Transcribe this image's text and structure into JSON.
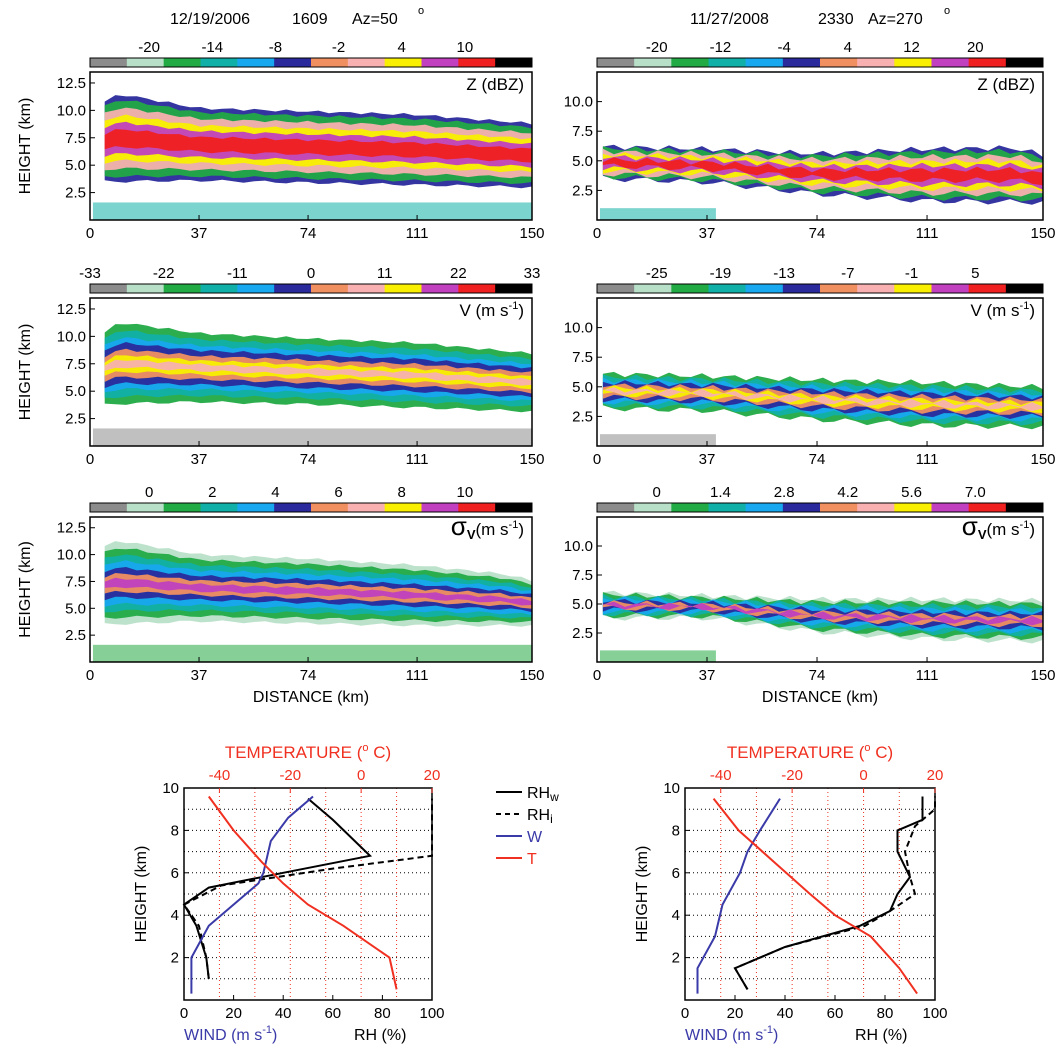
{
  "colors": {
    "radar_palette": [
      "#8c8c8c",
      "#b8e0c8",
      "#22aa44",
      "#10b0a8",
      "#18a8f0",
      "#2a2a9c",
      "#f09060",
      "#f8b0b0",
      "#f8f000",
      "#c040c0",
      "#f02020",
      "#000000"
    ],
    "rhw": "#000000",
    "rhi": "#000000",
    "wind": "#3a3aa8",
    "temperature": "#f03020",
    "red_axis": "#f03020",
    "blue_axis": "#3a3aa8"
  },
  "columns": [
    {
      "header": {
        "date": "12/19/2006",
        "time": "1609",
        "azimuth": "Az=50",
        "deg": "o"
      }
    },
    {
      "header": {
        "date": "11/27/2008",
        "time": "2330",
        "azimuth": "Az=270",
        "deg": "o"
      }
    }
  ],
  "chart_data": [
    {
      "type": "heatmap",
      "id": "Z-2006",
      "field_label": "Z (dBZ)",
      "colorbar_ticks": [
        "-20",
        "-14",
        "-8",
        "-2",
        "4",
        "10"
      ],
      "ylabel": "HEIGHT  (km)",
      "y_ticks": [
        "2.5",
        "5.0",
        "7.5",
        "10.0",
        "12.5"
      ],
      "ylim": [
        0,
        13.5
      ],
      "x_ticks": [
        "0",
        "37",
        "74",
        "111",
        "150"
      ],
      "xlim": [
        0,
        150
      ],
      "xlabel": "",
      "echo_top_km": [
        [
          5,
          10.8
        ],
        [
          10,
          11.5
        ],
        [
          37,
          10.2
        ],
        [
          74,
          9.9
        ],
        [
          111,
          9.6
        ],
        [
          140,
          9.0
        ],
        [
          150,
          8.8
        ]
      ],
      "echo_base_km": [
        [
          5,
          3.5
        ],
        [
          37,
          3.6
        ],
        [
          74,
          3.4
        ],
        [
          111,
          3.2
        ],
        [
          150,
          3.0
        ]
      ]
    },
    {
      "type": "heatmap",
      "id": "Z-2008",
      "field_label": "Z (dBZ)",
      "colorbar_ticks": [
        "-20",
        "-12",
        "-4",
        "4",
        "12",
        "20"
      ],
      "ylabel": "",
      "y_ticks": [
        "2.5",
        "5.0",
        "7.5",
        "10.0"
      ],
      "ylim": [
        0,
        12.5
      ],
      "x_ticks": [
        "0",
        "37",
        "74",
        "111",
        "150"
      ],
      "xlim": [
        0,
        150
      ],
      "xlabel": "",
      "echo_top_km": [
        [
          2,
          6.2
        ],
        [
          37,
          6.0
        ],
        [
          74,
          5.6
        ],
        [
          111,
          6.0
        ],
        [
          140,
          6.1
        ],
        [
          150,
          5.5
        ]
      ],
      "echo_base_km": [
        [
          2,
          3.5
        ],
        [
          37,
          3.2
        ],
        [
          74,
          2.2
        ],
        [
          111,
          1.6
        ],
        [
          150,
          1.5
        ]
      ]
    },
    {
      "type": "heatmap",
      "id": "V-2006",
      "field_label": "V  (m s",
      "field_label_sup": "-1",
      "colorbar_ticks": [
        "-33",
        "-22",
        "-11",
        "0",
        "11",
        "22",
        "33"
      ],
      "ylabel": "HEIGHT  (km)",
      "y_ticks": [
        "2.5",
        "5.0",
        "7.5",
        "10.0",
        "12.5"
      ],
      "ylim": [
        0,
        13.5
      ],
      "x_ticks": [
        "0",
        "37",
        "74",
        "111",
        "150"
      ],
      "xlim": [
        0,
        150
      ],
      "xlabel": "",
      "echo_top_km": [
        [
          5,
          10.8
        ],
        [
          10,
          11.8
        ],
        [
          37,
          10.7
        ],
        [
          74,
          10.2
        ],
        [
          111,
          9.8
        ],
        [
          150,
          8.8
        ]
      ],
      "echo_base_km": [
        [
          5,
          3.3
        ],
        [
          37,
          3.6
        ],
        [
          74,
          3.4
        ],
        [
          111,
          3.1
        ],
        [
          150,
          2.8
        ]
      ]
    },
    {
      "type": "heatmap",
      "id": "V-2008",
      "field_label": "V  (m s",
      "field_label_sup": "-1",
      "colorbar_ticks": [
        "-25",
        "-19",
        "-13",
        "-7",
        "-1",
        "5"
      ],
      "ylabel": "",
      "y_ticks": [
        "2.5",
        "5.0",
        "7.5",
        "10.0"
      ],
      "ylim": [
        0,
        12.5
      ],
      "x_ticks": [
        "0",
        "37",
        "74",
        "111",
        "150"
      ],
      "xlim": [
        0,
        150
      ],
      "xlabel": "",
      "echo_top_km": [
        [
          2,
          6.3
        ],
        [
          37,
          6.1
        ],
        [
          74,
          5.8
        ],
        [
          111,
          5.6
        ],
        [
          150,
          5.2
        ]
      ],
      "echo_base_km": [
        [
          2,
          3.0
        ],
        [
          37,
          2.8
        ],
        [
          74,
          2.0
        ],
        [
          111,
          1.5
        ],
        [
          150,
          1.4
        ]
      ]
    },
    {
      "type": "heatmap",
      "id": "SW-2006",
      "field_label": "σ",
      "field_label_sub": "V",
      "field_label_unit": "(m s",
      "field_label_sup": "-1",
      "colorbar_ticks": [
        "0",
        "2",
        "4",
        "6",
        "8",
        "10"
      ],
      "ylabel": "HEIGHT  (km)",
      "y_ticks": [
        "2.5",
        "5.0",
        "7.5",
        "10.0",
        "12.5"
      ],
      "ylim": [
        0,
        13.5
      ],
      "x_ticks": [
        "0",
        "37",
        "74",
        "111",
        "150"
      ],
      "xlim": [
        0,
        150
      ],
      "xlabel": "DISTANCE  (km)",
      "echo_top_km": [
        [
          5,
          10.8
        ],
        [
          10,
          11.3
        ],
        [
          37,
          10.0
        ],
        [
          74,
          9.6
        ],
        [
          111,
          9.0
        ],
        [
          140,
          8.2
        ],
        [
          150,
          7.6
        ]
      ],
      "echo_base_km": [
        [
          5,
          3.5
        ],
        [
          37,
          3.8
        ],
        [
          74,
          3.6
        ],
        [
          111,
          3.4
        ],
        [
          150,
          3.4
        ]
      ]
    },
    {
      "type": "heatmap",
      "id": "SW-2008",
      "field_label": "σ",
      "field_label_sub": "V",
      "field_label_unit": "(m s",
      "field_label_sup": "-1",
      "colorbar_ticks": [
        "0",
        "1.4",
        "2.8",
        "4.2",
        "5.6",
        "7.0"
      ],
      "ylabel": "",
      "y_ticks": [
        "2.5",
        "5.0",
        "7.5",
        "10.0"
      ],
      "ylim": [
        0,
        12.5
      ],
      "x_ticks": [
        "0",
        "37",
        "74",
        "111",
        "150"
      ],
      "xlim": [
        0,
        150
      ],
      "xlabel": "DISTANCE  (km)",
      "echo_top_km": [
        [
          2,
          6.0
        ],
        [
          37,
          5.7
        ],
        [
          74,
          5.4
        ],
        [
          111,
          5.4
        ],
        [
          150,
          5.3
        ]
      ],
      "echo_base_km": [
        [
          2,
          3.8
        ],
        [
          37,
          3.8
        ],
        [
          74,
          2.6
        ],
        [
          111,
          2.0
        ],
        [
          150,
          1.8
        ]
      ]
    },
    {
      "type": "line",
      "id": "sounding-2006",
      "top_axis_label": "TEMPERATURE  (",
      "top_axis_deg": "o",
      "top_axis_unit": " C)",
      "temperature_ticks": [
        "-40",
        "-20",
        "0",
        "20"
      ],
      "temperature_range": [
        -50,
        20
      ],
      "bottom_ticks": [
        "0",
        "20",
        "40",
        "60",
        "80",
        "100"
      ],
      "rh_wind_range": [
        0,
        100
      ],
      "wind_label": "WIND (m s",
      "wind_label_sup": "-1",
      "wind_label_end": ")",
      "rh_label": "RH (%)",
      "ylabel": "HEIGHT  (km)",
      "y_ticks": [
        "2",
        "4",
        "6",
        "8",
        "10"
      ],
      "ylim": [
        0,
        10
      ],
      "series": [
        {
          "name": "RHw",
          "key": "rhw",
          "points": [
            [
              10,
              1.0
            ],
            [
              9,
              2.0
            ],
            [
              5,
              3.5
            ],
            [
              0,
              4.5
            ],
            [
              10,
              5.3
            ],
            [
              40,
              6.0
            ],
            [
              75,
              6.8
            ],
            [
              60,
              8.5
            ],
            [
              50,
              9.5
            ]
          ]
        },
        {
          "name": "RHi",
          "key": "rhi",
          "points": [
            [
              10,
              1.0
            ],
            [
              9,
              2.0
            ],
            [
              6,
              3.5
            ],
            [
              0,
              4.5
            ],
            [
              15,
              5.4
            ],
            [
              60,
              6.2
            ],
            [
              100,
              6.8
            ],
            [
              100,
              9.5
            ]
          ]
        },
        {
          "name": "W",
          "key": "wind",
          "points": [
            [
              3,
              0.3
            ],
            [
              3,
              2.0
            ],
            [
              10,
              3.5
            ],
            [
              30,
              5.5
            ],
            [
              32,
              6.0
            ],
            [
              35,
              7.5
            ],
            [
              42,
              8.6
            ],
            [
              52,
              9.6
            ]
          ]
        },
        {
          "name": "T",
          "key": "temperature",
          "points": [
            [
              10,
              0.5
            ],
            [
              8,
              2.0
            ],
            [
              -5,
              3.5
            ],
            [
              -15,
              4.5
            ],
            [
              -22,
              5.5
            ],
            [
              -28,
              6.5
            ],
            [
              -36,
              8.0
            ],
            [
              -43,
              9.6
            ]
          ]
        }
      ]
    },
    {
      "type": "line",
      "id": "sounding-2008",
      "top_axis_label": "TEMPERATURE  (",
      "top_axis_deg": "o",
      "top_axis_unit": " C)",
      "temperature_ticks": [
        "-40",
        "-20",
        "0",
        "20"
      ],
      "temperature_range": [
        -50,
        20
      ],
      "bottom_ticks": [
        "0",
        "20",
        "40",
        "60",
        "80",
        "100"
      ],
      "rh_wind_range": [
        0,
        100
      ],
      "wind_label": "WIND (m s",
      "wind_label_sup": "-1",
      "wind_label_end": ")",
      "rh_label": "RH (%)",
      "ylabel": "HEIGHT  (km)",
      "y_ticks": [
        "2",
        "4",
        "6",
        "8",
        "10"
      ],
      "ylim": [
        0,
        10
      ],
      "series": [
        {
          "name": "RHw",
          "key": "rhw",
          "points": [
            [
              25,
              0.5
            ],
            [
              20,
              1.5
            ],
            [
              40,
              2.5
            ],
            [
              70,
              3.5
            ],
            [
              82,
              4.2
            ],
            [
              85,
              5.0
            ],
            [
              90,
              5.8
            ],
            [
              85,
              7.0
            ],
            [
              85,
              8.0
            ],
            [
              95,
              8.5
            ],
            [
              95,
              9.6
            ]
          ]
        },
        {
          "name": "RHi",
          "key": "rhi",
          "points": [
            [
              25,
              0.5
            ],
            [
              20,
              1.5
            ],
            [
              40,
              2.5
            ],
            [
              72,
              3.5
            ],
            [
              82,
              4.2
            ],
            [
              92,
              5.0
            ],
            [
              90,
              5.8
            ],
            [
              88,
              7.0
            ],
            [
              92,
              8.2
            ],
            [
              100,
              9.0
            ],
            [
              100,
              9.6
            ]
          ]
        },
        {
          "name": "W",
          "key": "wind",
          "points": [
            [
              5,
              0.3
            ],
            [
              5,
              1.5
            ],
            [
              12,
              3.0
            ],
            [
              15,
              4.5
            ],
            [
              22,
              6.0
            ],
            [
              25,
              7.0
            ],
            [
              30,
              8.0
            ],
            [
              38,
              9.5
            ]
          ]
        },
        {
          "name": "T",
          "key": "temperature",
          "points": [
            [
              15,
              0.3
            ],
            [
              10,
              1.5
            ],
            [
              2,
              3.0
            ],
            [
              -8,
              4.0
            ],
            [
              -15,
              5.0
            ],
            [
              -25,
              6.5
            ],
            [
              -35,
              8.0
            ],
            [
              -42,
              9.5
            ]
          ]
        }
      ]
    }
  ],
  "legend": [
    {
      "label": "RH",
      "sub": "w",
      "style": "solid",
      "key": "rhw"
    },
    {
      "label": "RH",
      "sub": "i",
      "style": "dashed",
      "key": "rhi"
    },
    {
      "label": "W",
      "sub": "",
      "style": "solid",
      "key": "wind"
    },
    {
      "label": "T",
      "sub": "",
      "style": "solid",
      "key": "temperature"
    }
  ]
}
